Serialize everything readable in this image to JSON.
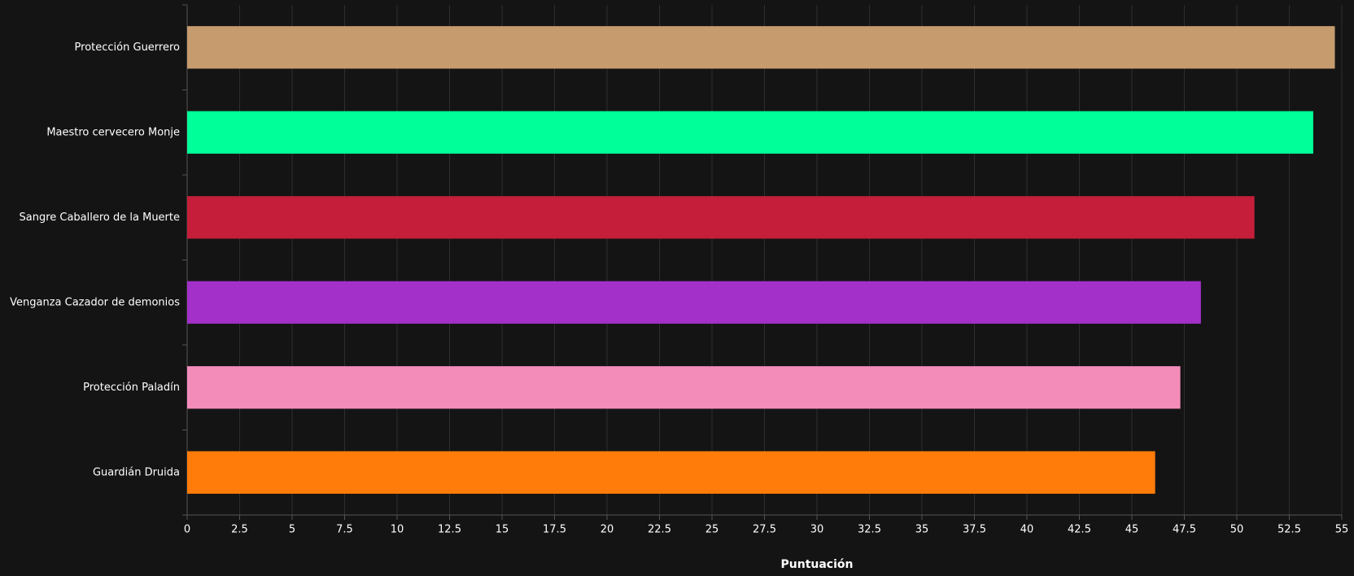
{
  "chart_data": {
    "type": "bar",
    "orientation": "horizontal",
    "x_axis_label": "Puntuación",
    "categories": [
      "Protección Guerrero",
      "Maestro cervecero Monje",
      "Sangre Caballero de la Muerte",
      "Venganza Cazador de demonios",
      "Protección Paladín",
      "Guardián Druida"
    ],
    "values": [
      54.67,
      53.64,
      50.84,
      48.29,
      47.31,
      46.11
    ],
    "colors": [
      "#c69b6d",
      "#00ff98",
      "#c41e3a",
      "#a330c9",
      "#f48cba",
      "#ff7c0a"
    ],
    "xlim": [
      0,
      55
    ],
    "xticks": [
      0,
      2.5,
      5,
      7.5,
      10,
      12.5,
      15,
      17.5,
      20,
      22.5,
      25,
      27.5,
      30,
      32.5,
      35,
      37.5,
      40,
      42.5,
      45,
      47.5,
      50,
      52.5,
      55
    ],
    "grid": true
  }
}
